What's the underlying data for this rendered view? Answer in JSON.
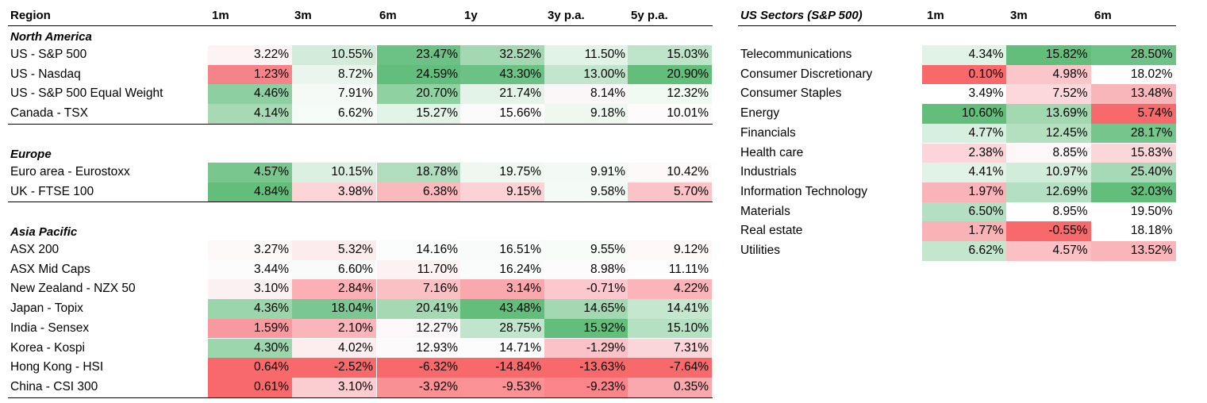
{
  "regions": {
    "header": {
      "label": "Region",
      "cols": [
        "1m",
        "3m",
        "6m",
        "1y",
        "3y p.a.",
        "5y p.a."
      ]
    },
    "sections": [
      {
        "name": "North America",
        "rows": [
          {
            "label": "US - S&P 500",
            "values": [
              "3.22%",
              "10.55%",
              "23.47%",
              "32.52%",
              "11.50%",
              "15.03%"
            ],
            "colors": [
              "#fcf3f4",
              "#d3ecd9",
              "#6cc184",
              "#a4d8b3",
              "#e1f2e6",
              "#bde3c8"
            ]
          },
          {
            "label": "US - Nasdaq",
            "values": [
              "1.23%",
              "8.72%",
              "24.59%",
              "43.30%",
              "13.00%",
              "20.90%"
            ],
            "colors": [
              "#f5848a",
              "#eaf6ed",
              "#63bd7c",
              "#6cc184",
              "#c3e5cd",
              "#63be7b"
            ]
          },
          {
            "label": "US - S&P 500 Equal Weight",
            "values": [
              "4.46%",
              "7.91%",
              "20.70%",
              "21.74%",
              "8.14%",
              "12.32%"
            ],
            "colors": [
              "#8dcfa0",
              "#f6faf7",
              "#90d1a2",
              "#e4f3e8",
              "#fbf7f8",
              "#f1f9f3"
            ]
          },
          {
            "label": "Canada - TSX",
            "values": [
              "4.14%",
              "6.62%",
              "15.27%",
              "15.66%",
              "9.18%",
              "10.01%"
            ],
            "colors": [
              "#a7d9b5",
              "#f5fbf7",
              "#e2f3e7",
              "#fbfbfc",
              "#eef8f1",
              "#fdfbfb"
            ]
          }
        ]
      },
      {
        "name": "Europe",
        "rows": [
          {
            "label": "Euro area - Eurostoxx",
            "values": [
              "4.57%",
              "10.15%",
              "18.78%",
              "19.75%",
              "9.91%",
              "10.42%"
            ],
            "colors": [
              "#79c68f",
              "#dcf0e2",
              "#b0ddbd",
              "#eef8f1",
              "#f3faf5",
              "#fdf9f9"
            ]
          },
          {
            "label": "UK - FTSE 100",
            "values": [
              "4.84%",
              "3.98%",
              "6.38%",
              "9.15%",
              "9.58%",
              "5.70%"
            ],
            "colors": [
              "#63be7b",
              "#fbd5d8",
              "#f9b9bd",
              "#fbd2d5",
              "#f4faf6",
              "#fac3c7"
            ]
          }
        ]
      },
      {
        "name": "Asia Pacific",
        "rows": [
          {
            "label": "ASX 200",
            "values": [
              "3.27%",
              "5.32%",
              "14.16%",
              "16.51%",
              "9.55%",
              "9.12%"
            ],
            "colors": [
              "#fcf8f8",
              "#fcebed",
              "#fbfdfc",
              "#f8fbf9",
              "#f7fbf8",
              "#fdf7f7"
            ]
          },
          {
            "label": "ASX Mid Caps",
            "values": [
              "3.44%",
              "6.60%",
              "11.70%",
              "16.24%",
              "8.98%",
              "11.11%"
            ],
            "colors": [
              "#fbfcfb",
              "#f8fbf9",
              "#fcf2f3",
              "#fafcfb",
              "#fdfbfb",
              "#fdfdfd"
            ]
          },
          {
            "label": "New Zealand - NZX 50",
            "values": [
              "3.10%",
              "2.84%",
              "7.16%",
              "3.14%",
              "-0.71%",
              "4.22%"
            ],
            "colors": [
              "#fcf1f2",
              "#fab0b5",
              "#fac1c5",
              "#f9a9ae",
              "#fbc9cd",
              "#fbb5ba"
            ]
          },
          {
            "label": "Japan - Topix",
            "values": [
              "4.36%",
              "18.04%",
              "20.41%",
              "43.48%",
              "14.65%",
              "14.41%"
            ],
            "colors": [
              "#9ad5ab",
              "#7bc791",
              "#a5d9b4",
              "#63be7b",
              "#a3d8b2",
              "#c5e6cf"
            ]
          },
          {
            "label": "India - Sensex",
            "values": [
              "1.59%",
              "2.10%",
              "12.27%",
              "28.75%",
              "15.92%",
              "15.10%"
            ],
            "colors": [
              "#f7999e",
              "#fab5ba",
              "#fcf8f9",
              "#c1e4cc",
              "#63be7b",
              "#b6e0c2"
            ]
          },
          {
            "label": "Korea - Kospi",
            "values": [
              "4.30%",
              "4.02%",
              "12.93%",
              "14.71%",
              "-1.29%",
              "7.31%"
            ],
            "colors": [
              "#9cd6ad",
              "#fcedee",
              "#fcfafa",
              "#fcfcfc",
              "#fbc3c7",
              "#fbd6d9"
            ]
          },
          {
            "label": "Hong Kong - HSI",
            "values": [
              "0.64%",
              "-2.52%",
              "-6.32%",
              "-14.84%",
              "-13.63%",
              "-7.64%"
            ],
            "colors": [
              "#f8696b",
              "#f8696b",
              "#f8696b",
              "#f8696b",
              "#f8696b",
              "#f8696b"
            ]
          },
          {
            "label": "China - CSI 300",
            "values": [
              "0.61%",
              "3.10%",
              "-3.92%",
              "-9.53%",
              "-9.23%",
              "0.35%"
            ],
            "colors": [
              "#f8696b",
              "#fccdd0",
              "#f99094",
              "#f99195",
              "#f9858a",
              "#f9a9ae"
            ]
          }
        ]
      }
    ]
  },
  "sectors": {
    "header": {
      "label": "US Sectors (S&P 500)",
      "cols": [
        "1m",
        "3m",
        "6m"
      ]
    },
    "rows": [
      {
        "label": "Telecommunications",
        "values": [
          "4.34%",
          "15.82%",
          "28.50%"
        ],
        "colors": [
          "#e1f2e6",
          "#63be7b",
          "#6dc285"
        ]
      },
      {
        "label": "Consumer Discretionary",
        "values": [
          "0.10%",
          "4.98%",
          "18.02%"
        ],
        "colors": [
          "#f8696b",
          "#fbc6ca",
          "#ffffff"
        ]
      },
      {
        "label": "Consumer Staples",
        "values": [
          "3.49%",
          "7.52%",
          "13.48%"
        ],
        "colors": [
          "#ffffff",
          "#fcd8da",
          "#f9b6ba"
        ]
      },
      {
        "label": "Energy",
        "values": [
          "10.60%",
          "13.69%",
          "5.74%"
        ],
        "colors": [
          "#63be7b",
          "#a1d8b0",
          "#f8696b"
        ]
      },
      {
        "label": "Financials",
        "values": [
          "4.77%",
          "12.45%",
          "28.17%"
        ],
        "colors": [
          "#d7efdf",
          "#b4e0c0",
          "#76c58c"
        ]
      },
      {
        "label": "Health care",
        "values": [
          "2.38%",
          "8.85%",
          "15.83%"
        ],
        "colors": [
          "#fcd5d8",
          "#fdf7f7",
          "#fcd7da"
        ]
      },
      {
        "label": "Industrials",
        "values": [
          "4.41%",
          "10.97%",
          "25.40%"
        ],
        "colors": [
          "#e1f2e6",
          "#d1ecd9",
          "#a6d9b5"
        ]
      },
      {
        "label": "Information Technology",
        "values": [
          "1.97%",
          "12.69%",
          "32.03%"
        ],
        "colors": [
          "#f9b4b9",
          "#b5dfc2",
          "#63be7b"
        ]
      },
      {
        "label": "Materials",
        "values": [
          "6.50%",
          "8.95%",
          "19.50%"
        ],
        "colors": [
          "#b5dfc2",
          "#ffffff",
          "#ffffff"
        ]
      },
      {
        "label": "Real estate",
        "values": [
          "1.77%",
          "-0.55%",
          "18.18%"
        ],
        "colors": [
          "#f9b3b7",
          "#f8696b",
          "#ffffff"
        ]
      },
      {
        "label": "Utilities",
        "values": [
          "6.62%",
          "4.57%",
          "13.52%"
        ],
        "colors": [
          "#c4e6cd",
          "#fac0c4",
          "#f9b5ba"
        ]
      }
    ]
  }
}
